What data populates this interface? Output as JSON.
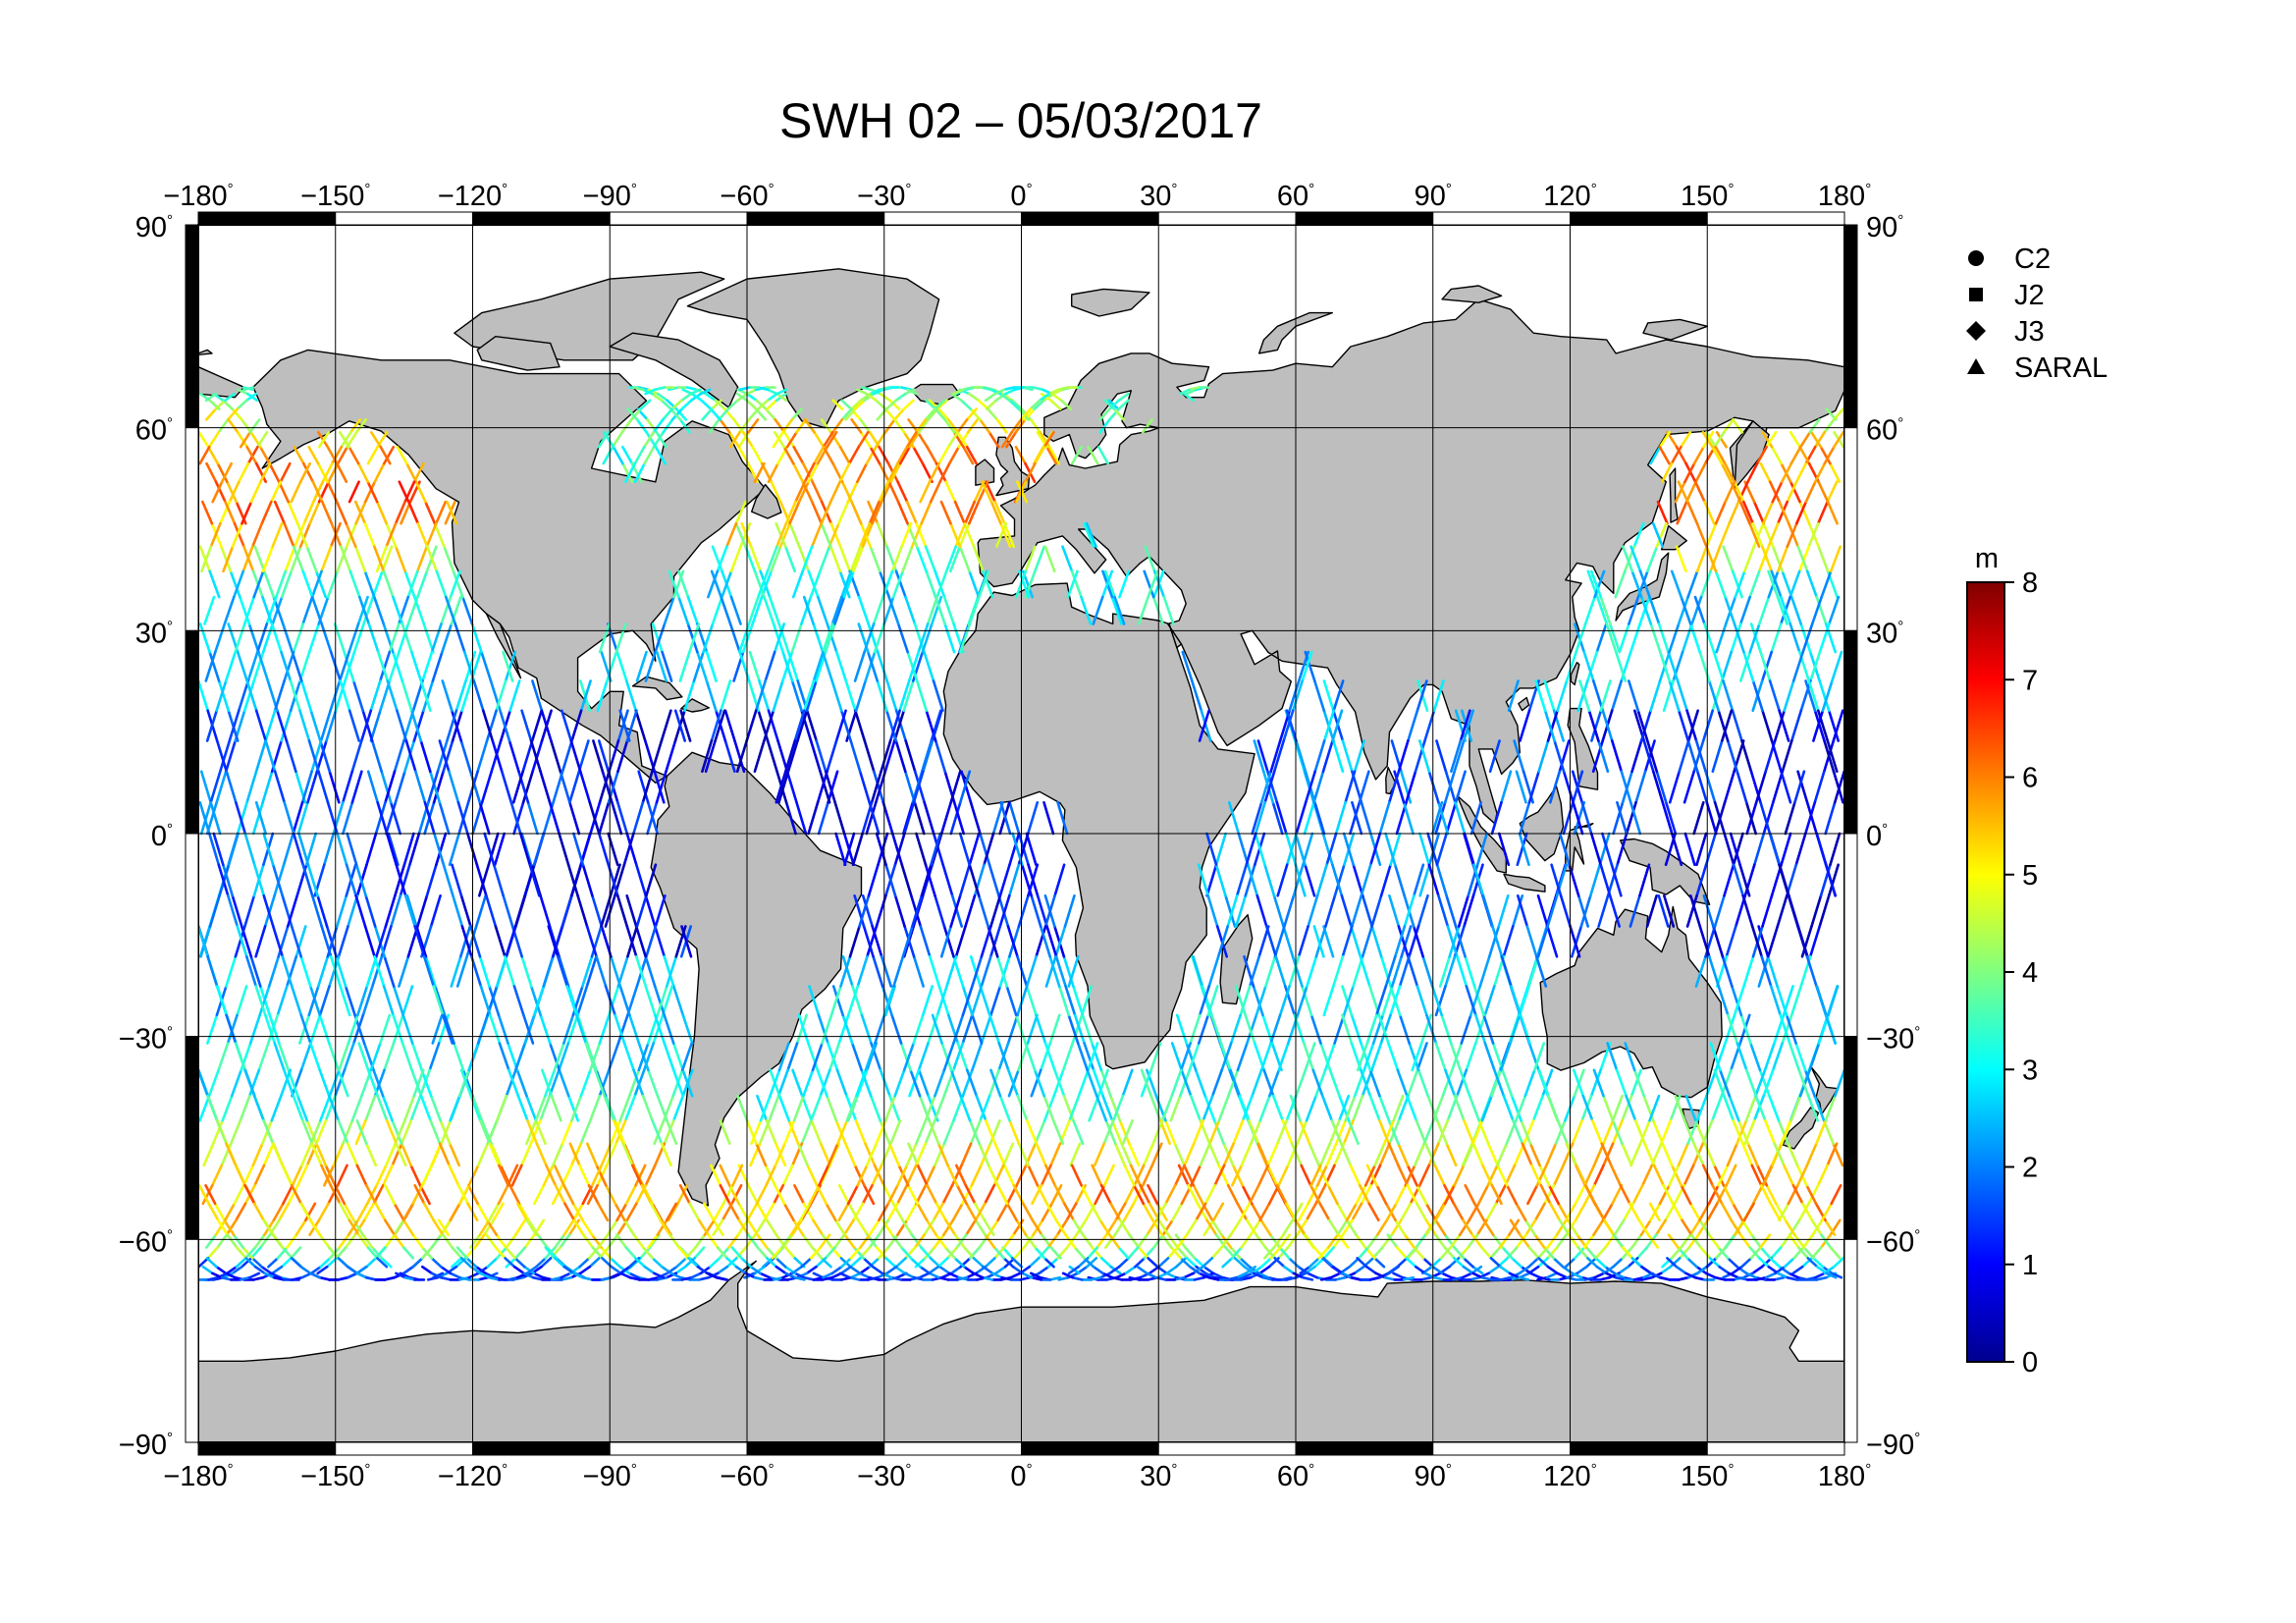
{
  "title": "SWH 02 – 05/03/2017",
  "chart_data": {
    "type": "map",
    "projection": "equirectangular",
    "title": "SWH 02 – 05/03/2017",
    "lon_range": [
      -180,
      180
    ],
    "lat_range": [
      -90,
      90
    ],
    "grid": true,
    "lon_ticks": [
      -180,
      -150,
      -120,
      -90,
      -60,
      -30,
      0,
      30,
      60,
      90,
      120,
      150,
      180
    ],
    "lon_tick_labels": [
      "−180",
      "−150",
      "−120",
      "−90",
      "−60",
      "−30",
      "0",
      "30",
      "60",
      "90",
      "120",
      "150",
      "180"
    ],
    "lat_ticks": [
      90,
      60,
      30,
      0,
      -30,
      -60,
      -90
    ],
    "lat_tick_labels": [
      "90",
      "60",
      "30",
      "0",
      "−30",
      "−60",
      "−90"
    ],
    "degree_symbol": "°",
    "colorbar": {
      "unit": "m",
      "min": 0,
      "max": 8,
      "ticks": [
        "0",
        "1",
        "2",
        "3",
        "4",
        "5",
        "6",
        "7",
        "8"
      ],
      "colormap": "jet"
    },
    "satellites_legend": [
      {
        "symbol": "circle",
        "label": "C2"
      },
      {
        "symbol": "square",
        "label": "J2"
      },
      {
        "symbol": "diamond",
        "label": "J3"
      },
      {
        "symbol": "triangle",
        "label": "SARAL"
      }
    ]
  },
  "colors": {
    "land": "#bebebe",
    "coast": "#000000",
    "grid": "#000000",
    "background": "#ffffff",
    "jet_stops": [
      "#00008f",
      "#0000ff",
      "#0080ff",
      "#00ffff",
      "#80ff80",
      "#ffff00",
      "#ff8000",
      "#ff0000",
      "#800000"
    ]
  }
}
